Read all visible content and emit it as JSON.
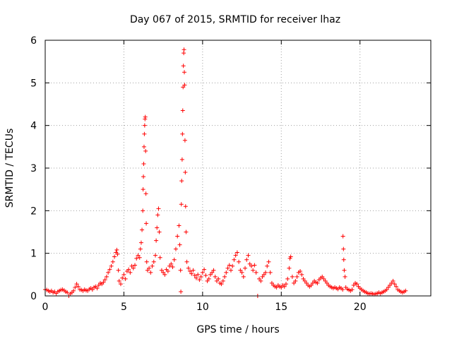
{
  "chart_data": {
    "type": "scatter",
    "title": "Day 067 of 2015, SRMTID for receiver lhaz",
    "xlabel": "GPS time / hours",
    "ylabel": "SRMTID / TECUs",
    "xlim": [
      0,
      24.5
    ],
    "ylim": [
      0,
      6
    ],
    "xticks": [
      0,
      5,
      10,
      15,
      20
    ],
    "yticks": [
      0,
      1,
      2,
      3,
      4,
      5,
      6
    ],
    "xtick_labels": [
      "0",
      "5",
      "10",
      "15",
      "20"
    ],
    "ytick_labels": [
      "0",
      "1",
      "2",
      "3",
      "4",
      "5",
      "6"
    ],
    "grid": true,
    "marker": "+",
    "color": "#ff0000",
    "series": [
      {
        "name": "SRMTID",
        "points": [
          [
            0.0,
            0.15
          ],
          [
            0.1,
            0.14
          ],
          [
            0.2,
            0.12
          ],
          [
            0.3,
            0.1
          ],
          [
            0.4,
            0.12
          ],
          [
            0.5,
            0.08
          ],
          [
            0.6,
            0.1
          ],
          [
            0.7,
            0.06
          ],
          [
            0.8,
            0.1
          ],
          [
            0.9,
            0.12
          ],
          [
            1.0,
            0.14
          ],
          [
            1.1,
            0.15
          ],
          [
            1.2,
            0.13
          ],
          [
            1.3,
            0.1
          ],
          [
            1.4,
            0.08
          ],
          [
            1.5,
            0.0
          ],
          [
            1.6,
            0.05
          ],
          [
            1.7,
            0.08
          ],
          [
            1.8,
            0.12
          ],
          [
            1.9,
            0.2
          ],
          [
            2.0,
            0.28
          ],
          [
            2.1,
            0.22
          ],
          [
            2.2,
            0.15
          ],
          [
            2.3,
            0.14
          ],
          [
            2.4,
            0.12
          ],
          [
            2.5,
            0.15
          ],
          [
            2.6,
            0.13
          ],
          [
            2.7,
            0.12
          ],
          [
            2.8,
            0.16
          ],
          [
            2.9,
            0.18
          ],
          [
            3.0,
            0.15
          ],
          [
            3.1,
            0.2
          ],
          [
            3.2,
            0.22
          ],
          [
            3.3,
            0.18
          ],
          [
            3.4,
            0.25
          ],
          [
            3.5,
            0.3
          ],
          [
            3.6,
            0.28
          ],
          [
            3.7,
            0.32
          ],
          [
            3.8,
            0.38
          ],
          [
            3.9,
            0.45
          ],
          [
            4.0,
            0.55
          ],
          [
            4.1,
            0.62
          ],
          [
            4.2,
            0.7
          ],
          [
            4.3,
            0.8
          ],
          [
            4.4,
            0.92
          ],
          [
            4.5,
            1.02
          ],
          [
            4.55,
            1.08
          ],
          [
            4.6,
            0.98
          ],
          [
            4.65,
            0.6
          ],
          [
            4.7,
            0.35
          ],
          [
            4.8,
            0.28
          ],
          [
            4.9,
            0.42
          ],
          [
            5.0,
            0.5
          ],
          [
            5.1,
            0.4
          ],
          [
            5.2,
            0.58
          ],
          [
            5.3,
            0.62
          ],
          [
            5.4,
            0.55
          ],
          [
            5.5,
            0.7
          ],
          [
            5.6,
            0.65
          ],
          [
            5.7,
            0.72
          ],
          [
            5.8,
            0.88
          ],
          [
            5.9,
            0.95
          ],
          [
            6.0,
            0.9
          ],
          [
            6.05,
            1.1
          ],
          [
            6.1,
            1.25
          ],
          [
            6.15,
            1.55
          ],
          [
            6.2,
            2.0
          ],
          [
            6.22,
            2.5
          ],
          [
            6.24,
            2.8
          ],
          [
            6.26,
            3.1
          ],
          [
            6.28,
            3.5
          ],
          [
            6.3,
            3.8
          ],
          [
            6.32,
            4.0
          ],
          [
            6.34,
            4.15
          ],
          [
            6.36,
            4.2
          ],
          [
            6.38,
            3.4
          ],
          [
            6.4,
            2.4
          ],
          [
            6.42,
            1.7
          ],
          [
            6.45,
            0.8
          ],
          [
            6.5,
            0.6
          ],
          [
            6.6,
            0.65
          ],
          [
            6.7,
            0.55
          ],
          [
            6.8,
            0.7
          ],
          [
            6.9,
            0.8
          ],
          [
            7.0,
            0.95
          ],
          [
            7.05,
            1.3
          ],
          [
            7.1,
            1.6
          ],
          [
            7.15,
            1.9
          ],
          [
            7.2,
            2.05
          ],
          [
            7.25,
            1.5
          ],
          [
            7.3,
            0.9
          ],
          [
            7.4,
            0.6
          ],
          [
            7.5,
            0.55
          ],
          [
            7.6,
            0.5
          ],
          [
            7.7,
            0.62
          ],
          [
            7.8,
            0.58
          ],
          [
            7.9,
            0.7
          ],
          [
            8.0,
            0.75
          ],
          [
            8.1,
            0.68
          ],
          [
            8.2,
            0.85
          ],
          [
            8.3,
            1.1
          ],
          [
            8.4,
            1.4
          ],
          [
            8.5,
            1.65
          ],
          [
            8.55,
            1.2
          ],
          [
            8.6,
            0.6
          ],
          [
            8.62,
            0.1
          ],
          [
            8.65,
            2.15
          ],
          [
            8.67,
            2.7
          ],
          [
            8.7,
            3.2
          ],
          [
            8.72,
            3.8
          ],
          [
            8.74,
            4.35
          ],
          [
            8.76,
            4.9
          ],
          [
            8.78,
            5.4
          ],
          [
            8.8,
            5.7
          ],
          [
            8.82,
            5.78
          ],
          [
            8.84,
            5.25
          ],
          [
            8.86,
            4.95
          ],
          [
            8.88,
            3.65
          ],
          [
            8.9,
            2.9
          ],
          [
            8.92,
            2.1
          ],
          [
            8.95,
            1.5
          ],
          [
            9.0,
            0.8
          ],
          [
            9.1,
            0.65
          ],
          [
            9.2,
            0.58
          ],
          [
            9.3,
            0.52
          ],
          [
            9.4,
            0.6
          ],
          [
            9.5,
            0.48
          ],
          [
            9.6,
            0.42
          ],
          [
            9.7,
            0.5
          ],
          [
            9.8,
            0.38
          ],
          [
            9.9,
            0.45
          ],
          [
            10.0,
            0.55
          ],
          [
            10.1,
            0.62
          ],
          [
            10.2,
            0.48
          ],
          [
            10.3,
            0.35
          ],
          [
            10.4,
            0.4
          ],
          [
            10.5,
            0.5
          ],
          [
            10.6,
            0.55
          ],
          [
            10.7,
            0.6
          ],
          [
            10.8,
            0.45
          ],
          [
            10.9,
            0.35
          ],
          [
            11.0,
            0.4
          ],
          [
            11.1,
            0.3
          ],
          [
            11.2,
            0.28
          ],
          [
            11.3,
            0.35
          ],
          [
            11.4,
            0.45
          ],
          [
            11.5,
            0.55
          ],
          [
            11.6,
            0.65
          ],
          [
            11.7,
            0.72
          ],
          [
            11.8,
            0.6
          ],
          [
            11.9,
            0.7
          ],
          [
            12.0,
            0.85
          ],
          [
            12.1,
            0.95
          ],
          [
            12.2,
            1.02
          ],
          [
            12.3,
            0.8
          ],
          [
            12.4,
            0.6
          ],
          [
            12.5,
            0.55
          ],
          [
            12.6,
            0.45
          ],
          [
            12.7,
            0.65
          ],
          [
            12.8,
            0.85
          ],
          [
            12.9,
            0.95
          ],
          [
            13.0,
            0.75
          ],
          [
            13.1,
            0.7
          ],
          [
            13.2,
            0.6
          ],
          [
            13.3,
            0.72
          ],
          [
            13.4,
            0.55
          ],
          [
            13.5,
            0.0
          ],
          [
            13.6,
            0.4
          ],
          [
            13.7,
            0.35
          ],
          [
            13.8,
            0.45
          ],
          [
            13.9,
            0.5
          ],
          [
            14.0,
            0.55
          ],
          [
            14.1,
            0.7
          ],
          [
            14.2,
            0.8
          ],
          [
            14.3,
            0.55
          ],
          [
            14.4,
            0.3
          ],
          [
            14.5,
            0.25
          ],
          [
            14.6,
            0.22
          ],
          [
            14.7,
            0.2
          ],
          [
            14.8,
            0.25
          ],
          [
            14.9,
            0.22
          ],
          [
            15.0,
            0.2
          ],
          [
            15.1,
            0.25
          ],
          [
            15.2,
            0.22
          ],
          [
            15.3,
            0.28
          ],
          [
            15.4,
            0.4
          ],
          [
            15.5,
            0.65
          ],
          [
            15.55,
            0.88
          ],
          [
            15.6,
            0.92
          ],
          [
            15.7,
            0.45
          ],
          [
            15.8,
            0.3
          ],
          [
            15.9,
            0.35
          ],
          [
            16.0,
            0.45
          ],
          [
            16.1,
            0.55
          ],
          [
            16.2,
            0.58
          ],
          [
            16.3,
            0.5
          ],
          [
            16.4,
            0.4
          ],
          [
            16.5,
            0.35
          ],
          [
            16.6,
            0.3
          ],
          [
            16.7,
            0.25
          ],
          [
            16.8,
            0.22
          ],
          [
            16.9,
            0.25
          ],
          [
            17.0,
            0.3
          ],
          [
            17.1,
            0.35
          ],
          [
            17.2,
            0.32
          ],
          [
            17.3,
            0.3
          ],
          [
            17.4,
            0.38
          ],
          [
            17.5,
            0.42
          ],
          [
            17.6,
            0.45
          ],
          [
            17.7,
            0.4
          ],
          [
            17.8,
            0.35
          ],
          [
            17.9,
            0.3
          ],
          [
            18.0,
            0.25
          ],
          [
            18.1,
            0.22
          ],
          [
            18.2,
            0.2
          ],
          [
            18.3,
            0.18
          ],
          [
            18.4,
            0.2
          ],
          [
            18.5,
            0.18
          ],
          [
            18.6,
            0.16
          ],
          [
            18.7,
            0.2
          ],
          [
            18.8,
            0.18
          ],
          [
            18.9,
            0.15
          ],
          [
            18.92,
            1.4
          ],
          [
            18.95,
            1.1
          ],
          [
            18.97,
            0.85
          ],
          [
            19.0,
            0.6
          ],
          [
            19.05,
            0.45
          ],
          [
            19.1,
            0.2
          ],
          [
            19.2,
            0.16
          ],
          [
            19.3,
            0.14
          ],
          [
            19.4,
            0.12
          ],
          [
            19.5,
            0.15
          ],
          [
            19.6,
            0.25
          ],
          [
            19.7,
            0.3
          ],
          [
            19.8,
            0.28
          ],
          [
            19.9,
            0.22
          ],
          [
            20.0,
            0.18
          ],
          [
            20.1,
            0.15
          ],
          [
            20.2,
            0.12
          ],
          [
            20.3,
            0.1
          ],
          [
            20.4,
            0.08
          ],
          [
            20.5,
            0.06
          ],
          [
            20.6,
            0.05
          ],
          [
            20.7,
            0.06
          ],
          [
            20.8,
            0.05
          ],
          [
            20.9,
            0.04
          ],
          [
            21.0,
            0.05
          ],
          [
            21.1,
            0.06
          ],
          [
            21.2,
            0.08
          ],
          [
            21.3,
            0.06
          ],
          [
            21.4,
            0.08
          ],
          [
            21.5,
            0.1
          ],
          [
            21.6,
            0.12
          ],
          [
            21.7,
            0.15
          ],
          [
            21.8,
            0.2
          ],
          [
            21.9,
            0.25
          ],
          [
            22.0,
            0.3
          ],
          [
            22.1,
            0.35
          ],
          [
            22.2,
            0.28
          ],
          [
            22.3,
            0.22
          ],
          [
            22.4,
            0.15
          ],
          [
            22.5,
            0.12
          ],
          [
            22.6,
            0.1
          ],
          [
            22.7,
            0.08
          ],
          [
            22.8,
            0.1
          ],
          [
            22.9,
            0.12
          ]
        ]
      }
    ]
  }
}
